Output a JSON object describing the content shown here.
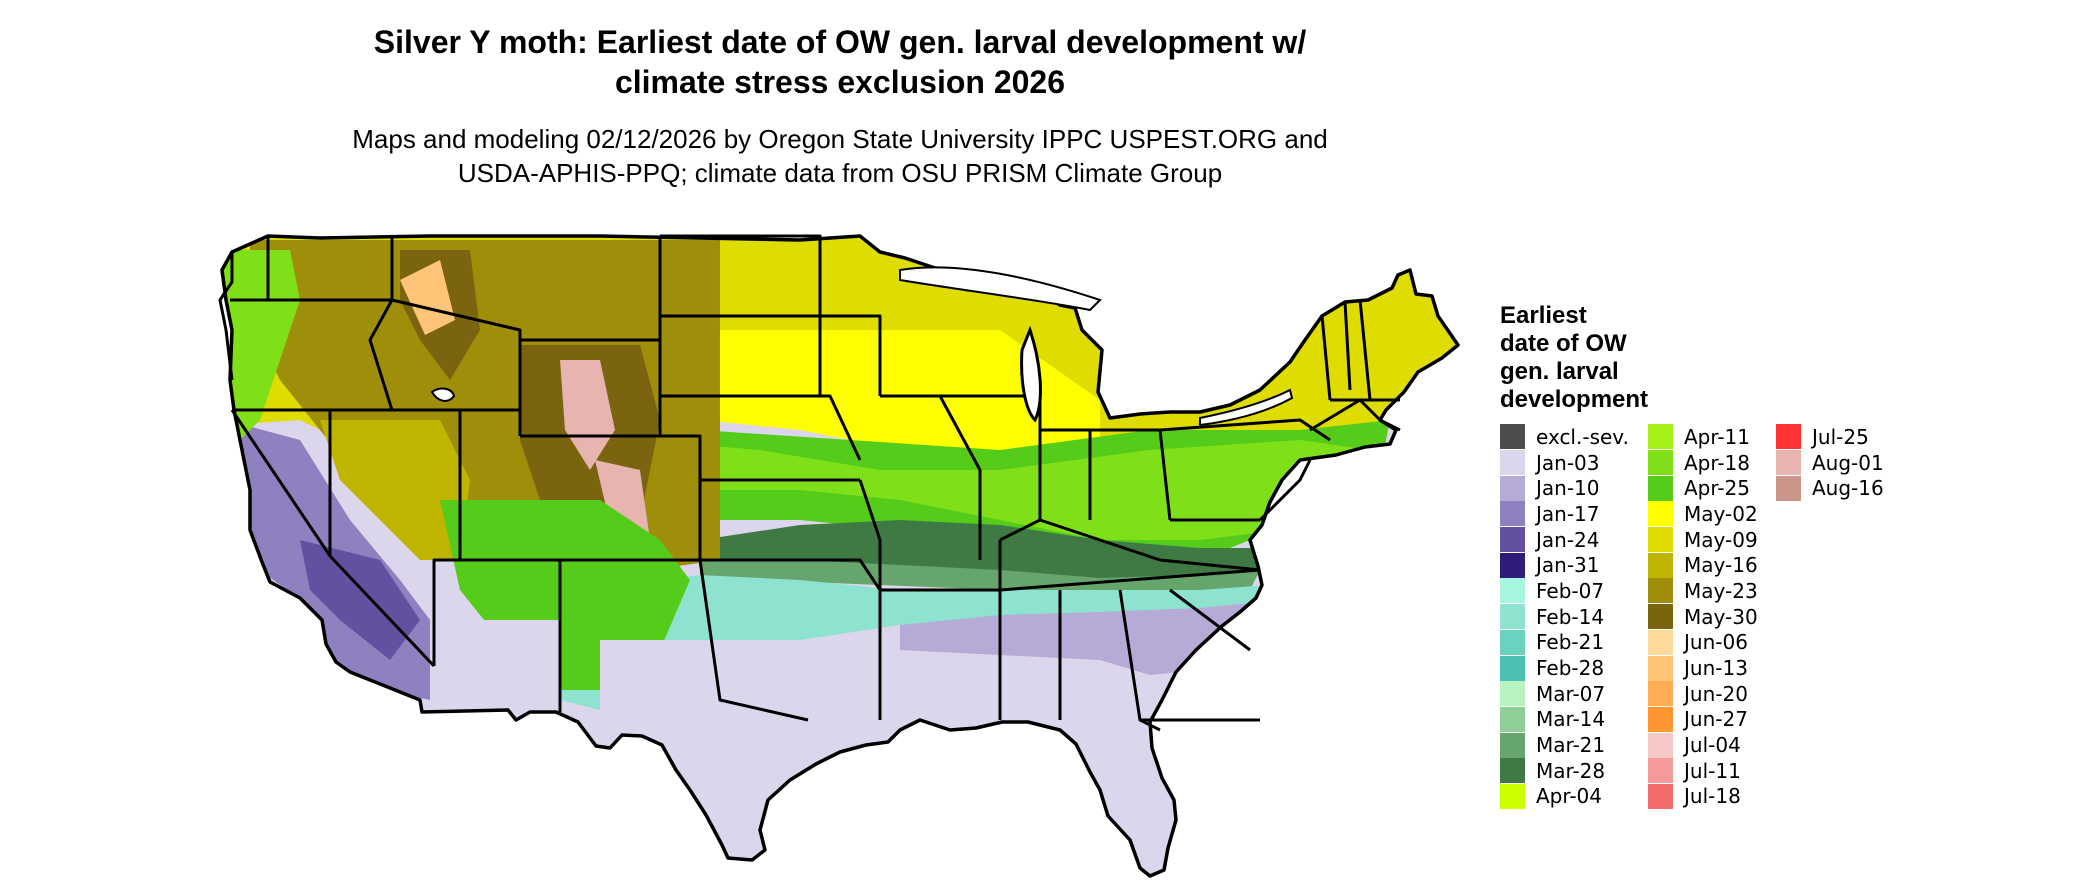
{
  "title_line1": "Silver Y moth: Earliest date of OW gen. larval development w/",
  "title_line2": "climate stress exclusion 2026",
  "subtitle_line1": "Maps and modeling 02/12/2026 by Oregon State University IPPC USPEST.ORG and",
  "subtitle_line2": "USDA-APHIS-PPQ; climate data from OSU PRISM Climate Group",
  "legend": {
    "title_lines": [
      "Earliest",
      "date of OW",
      "gen. larval",
      "development"
    ],
    "columns": [
      [
        {
          "label": "excl.-sev.",
          "color": "#4d4d4d"
        },
        {
          "label": "Jan-03",
          "color": "#dcd6ec"
        },
        {
          "label": "Jan-10",
          "color": "#b6aad6"
        },
        {
          "label": "Jan-17",
          "color": "#8f80bf"
        },
        {
          "label": "Jan-24",
          "color": "#6450a0"
        },
        {
          "label": "Jan-31",
          "color": "#2f1c78"
        },
        {
          "label": "Feb-07",
          "color": "#a6f5de"
        },
        {
          "label": "Feb-14",
          "color": "#8de3cf"
        },
        {
          "label": "Feb-21",
          "color": "#6cd2c0"
        },
        {
          "label": "Feb-28",
          "color": "#4bbfb2"
        },
        {
          "label": "Mar-07",
          "color": "#b7f2c0"
        },
        {
          "label": "Mar-14",
          "color": "#8fcf97"
        },
        {
          "label": "Mar-21",
          "color": "#66a66d"
        },
        {
          "label": "Mar-28",
          "color": "#3f7a45"
        },
        {
          "label": "Apr-04",
          "color": "#ccff00"
        }
      ],
      [
        {
          "label": "Apr-11",
          "color": "#a6f01a"
        },
        {
          "label": "Apr-18",
          "color": "#7fe01a"
        },
        {
          "label": "Apr-25",
          "color": "#55cc1a"
        },
        {
          "label": "May-02",
          "color": "#ffff00"
        },
        {
          "label": "May-09",
          "color": "#dedc00"
        },
        {
          "label": "May-16",
          "color": "#bfb400"
        },
        {
          "label": "May-23",
          "color": "#9e8e0a"
        },
        {
          "label": "May-30",
          "color": "#7a6410"
        },
        {
          "label": "Jun-06",
          "color": "#ffd99a"
        },
        {
          "label": "Jun-13",
          "color": "#ffc478"
        },
        {
          "label": "Jun-20",
          "color": "#ffad55"
        },
        {
          "label": "Jun-27",
          "color": "#ff9630"
        },
        {
          "label": "Jul-04",
          "color": "#f6c8c8"
        },
        {
          "label": "Jul-11",
          "color": "#f59a9a"
        },
        {
          "label": "Jul-18",
          "color": "#f26b6b"
        }
      ],
      [
        {
          "label": "Jul-25",
          "color": "#ff3333"
        },
        {
          "label": "Aug-01",
          "color": "#e8b4b0"
        },
        {
          "label": "Aug-16",
          "color": "#cc958a"
        }
      ]
    ]
  },
  "map_colors": {
    "water": "#ffffff",
    "outline": "#000000",
    "south_base": "#dcd6ec",
    "gulf_band": "#8de3cf",
    "southeast_band": "#b6aad6",
    "midsouth_band": "#3f7a45",
    "central_band": "#55cc1a",
    "plains_band": "#ffff00",
    "north_band": "#dedc00",
    "mountain": "#7a6410",
    "high_peaks": "#e8b4b0",
    "california_desert": "#6450a0",
    "pacific_coast": "#7fe01a"
  }
}
